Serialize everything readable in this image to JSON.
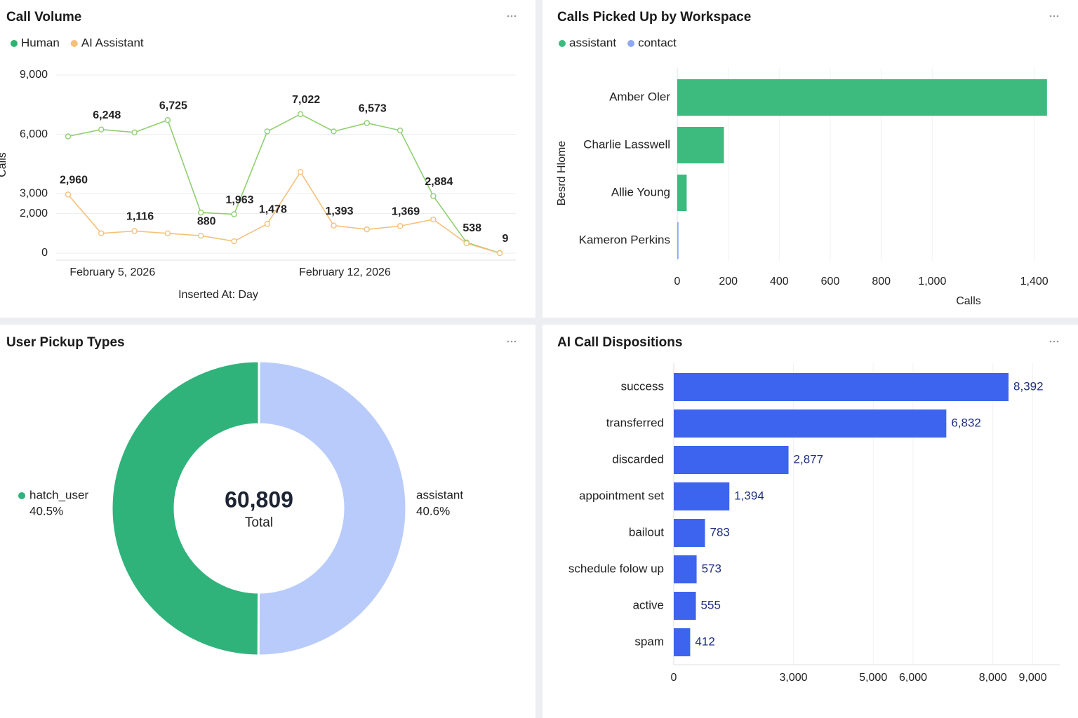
{
  "chart_data": [
    {
      "type": "line",
      "title": "Call Volume",
      "y_label": "Calls",
      "x_label": "Inserted At: Day",
      "categories": [
        null,
        "February 5, 2026",
        null,
        null,
        null,
        null,
        null,
        null,
        "February 12, 2026",
        null,
        null,
        null,
        null,
        null
      ],
      "series": [
        {
          "name": "Human",
          "color": "#8fcf6f",
          "legend_color": "#2fb36f",
          "values": [
            5900,
            6248,
            6100,
            6725,
            2050,
            1963,
            6150,
            7022,
            6150,
            6573,
            6200,
            2884,
            538,
            9
          ],
          "value_labels": [
            null,
            "6,248",
            null,
            "6,725",
            null,
            "1,963",
            null,
            "7,022",
            null,
            "6,573",
            null,
            "2,884",
            "538",
            "9"
          ]
        },
        {
          "name": "AI Assistant",
          "color": "#f5c07a",
          "legend_color": "#f5c07a",
          "values": [
            2960,
            1000,
            1116,
            1000,
            880,
            600,
            1478,
            4100,
            1393,
            1200,
            1369,
            1700,
            500,
            0
          ],
          "value_labels": [
            "2,960",
            null,
            "1,116",
            null,
            "880",
            null,
            "1,478",
            null,
            "1,393",
            null,
            "1,369",
            null,
            null,
            null
          ]
        }
      ],
      "ylim": [
        0,
        9000
      ],
      "yticks": [
        0,
        {
          "value": 2000,
          "label": "2,000"
        },
        {
          "value": 3000,
          "label": "3,000"
        },
        {
          "value": 6000,
          "label": "6,000"
        },
        {
          "value": 9000,
          "label": "9,000"
        }
      ],
      "grid": true,
      "legend": "top-left"
    },
    {
      "type": "bar",
      "orientation": "horizontal",
      "stacked": true,
      "title": "Calls Picked Up by Workspace",
      "y_label": "Besrd Hlome",
      "x_label": "Calls",
      "categories": [
        "Amber Oler",
        "Charlie Lasswell",
        "Allie Young",
        "Kameron Perkins"
      ],
      "series": [
        {
          "name": "assistant",
          "color": "#3dba7e",
          "values": [
            1450,
            183,
            37,
            0
          ]
        },
        {
          "name": "contact",
          "color": "#8fa8f0",
          "values": [
            0,
            0,
            0,
            5
          ]
        }
      ],
      "xlim": [
        0,
        1500
      ],
      "xticks": [
        0,
        200,
        400,
        600,
        800,
        {
          "value": 1000,
          "label": "1,000"
        },
        {
          "value": 1400,
          "label": "1,400"
        }
      ],
      "grid": true,
      "legend": "top-left"
    },
    {
      "type": "pie",
      "title": "User Pickup Types",
      "donut": true,
      "total": "60,809",
      "total_text": "Total",
      "categories": [
        "assistant",
        "hatch_user"
      ],
      "values": [
        40.6,
        40.5
      ],
      "value_labels": [
        "40.6%",
        "40.5%"
      ],
      "colors": [
        "#b9cbfb",
        "#2fb37a"
      ]
    },
    {
      "type": "bar",
      "orientation": "horizontal",
      "title": "AI Call Dispositions",
      "categories": [
        "success",
        "transferred",
        "discarded",
        "appointment set",
        "bailout",
        "schedule folow up",
        "active",
        "spam"
      ],
      "values": [
        8392,
        6832,
        2877,
        1394,
        783,
        573,
        555,
        412
      ],
      "value_labels": [
        "8,392",
        "6,832",
        "2,877",
        "1,394",
        "783",
        "573",
        "555",
        "412"
      ],
      "color": "#3d64ee",
      "xlim": [
        0,
        9500
      ],
      "xticks": [
        0,
        {
          "value": 3000,
          "label": "3,000"
        },
        {
          "value": 6000,
          "label": "6,000"
        },
        {
          "value": 5000,
          "label": "5,000"
        },
        {
          "value": 8000,
          "label": "8,000"
        },
        {
          "value": 9000,
          "label": "9,000"
        }
      ],
      "grid": true
    }
  ]
}
